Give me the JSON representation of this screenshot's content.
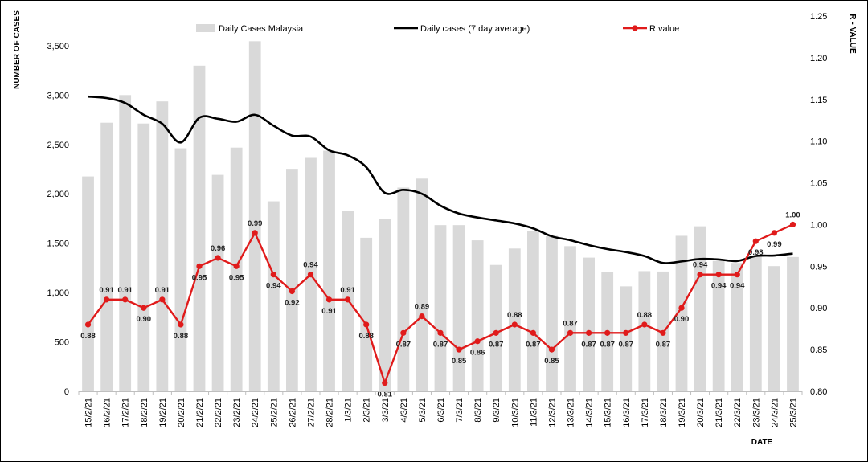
{
  "chart_data": {
    "type": "bar",
    "categories": [
      "15/2/21",
      "16/2/21",
      "17/2/21",
      "18/2/21",
      "19/2/21",
      "20/2/21",
      "21/2/21",
      "22/2/21",
      "23/2/21",
      "24/2/21",
      "25/2/21",
      "26/2/21",
      "27/2/21",
      "28/2/21",
      "1/3/21",
      "2/3/21",
      "3/3/21",
      "4/3/21",
      "5/3/21",
      "6/3/21",
      "7/3/21",
      "8/3/21",
      "9/3/21",
      "10/3/21",
      "11/3/21",
      "12/3/21",
      "13/3/21",
      "14/3/21",
      "15/3/21",
      "16/3/21",
      "17/3/21",
      "18/3/21",
      "19/3/21",
      "20/3/21",
      "21/3/21",
      "22/3/21",
      "23/3/21",
      "24/3/21",
      "25/3/21"
    ],
    "series": [
      {
        "name": "Daily Cases Malaysia",
        "type": "bar",
        "axis": "left",
        "color": "#d9d9d9",
        "values": [
          2176,
          2720,
          3000,
          2712,
          2936,
          2461,
          3297,
          2192,
          2468,
          3545,
          1924,
          2253,
          2364,
          2437,
          1828,
          1555,
          1745,
          2063,
          2154,
          1683,
          1683,
          1529,
          1280,
          1446,
          1623,
          1575,
          1470,
          1354,
          1208,
          1063,
          1217,
          1213,
          1575,
          1671,
          1320,
          1300,
          1365,
          1268,
          1360
        ]
      },
      {
        "name": "Daily cases (7 day average)",
        "type": "line",
        "axis": "left",
        "color": "#000000",
        "values": [
          2985,
          2970,
          2920,
          2800,
          2710,
          2520,
          2770,
          2760,
          2730,
          2800,
          2690,
          2590,
          2580,
          2440,
          2390,
          2270,
          2010,
          2040,
          2000,
          1880,
          1800,
          1760,
          1730,
          1700,
          1650,
          1570,
          1530,
          1480,
          1440,
          1410,
          1370,
          1300,
          1315,
          1340,
          1335,
          1320,
          1370,
          1375,
          1395
        ]
      },
      {
        "name": "R value",
        "type": "line",
        "axis": "right",
        "color": "#e01b1b",
        "values": [
          0.88,
          0.91,
          0.91,
          0.9,
          0.91,
          0.88,
          0.95,
          0.96,
          0.95,
          0.99,
          0.94,
          0.92,
          0.94,
          0.91,
          0.91,
          0.88,
          0.81,
          0.87,
          0.89,
          0.87,
          0.85,
          0.86,
          0.87,
          0.88,
          0.87,
          0.85,
          0.87,
          0.87,
          0.87,
          0.87,
          0.88,
          0.87,
          0.9,
          0.94,
          0.94,
          0.94,
          0.98,
          0.99,
          1.0
        ],
        "labels": [
          "0.88",
          "0.91",
          "0.91",
          "0.90",
          "0.91",
          "0.88",
          "0.95",
          "0.96",
          "0.95",
          "0.99",
          "0.94",
          "0.92",
          "0.94",
          "0.91",
          "0.91",
          "0.88",
          "0.81",
          "0.87",
          "0.89",
          "0.87",
          "0.85",
          "0.86",
          "0.87",
          "0.88",
          "0.87",
          "0.85",
          "0.87",
          "0.87",
          "0.87",
          "0.87",
          "0.88",
          "0.87",
          "0.90",
          "0.94",
          "0.94",
          "0.94",
          "0.98",
          "0.99",
          "1.00"
        ]
      }
    ],
    "ylabel": "NUMBER OF CASES",
    "y2label": "R - VALUE",
    "xlabel": "DATE",
    "ylim": [
      0,
      3800
    ],
    "y2lim": [
      0.8,
      1.25
    ],
    "yticks": [
      "0",
      "500",
      "1,000",
      "1,500",
      "2,000",
      "2,500",
      "3,000",
      "3,500"
    ],
    "y2ticks": [
      "0.80",
      "0.85",
      "0.90",
      "0.95",
      "1.00",
      "1.05",
      "1.10",
      "1.15",
      "1.20",
      "1.25"
    ],
    "grid": false,
    "legend": "top"
  }
}
